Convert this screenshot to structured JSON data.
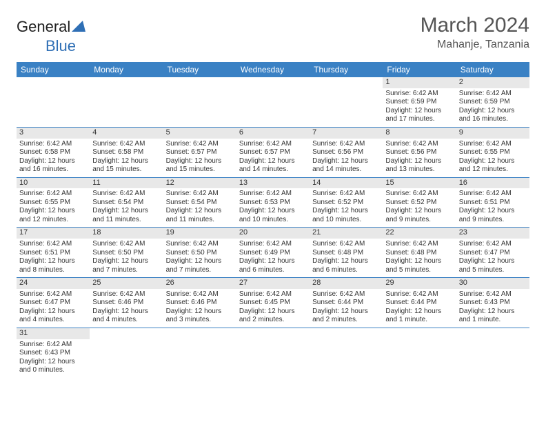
{
  "logo": {
    "text1": "General",
    "text2": "Blue",
    "shape_color": "#2f6fb5"
  },
  "header": {
    "month_title": "March 2024",
    "location": "Mahanje, Tanzania"
  },
  "colors": {
    "header_bg": "#3a81c4",
    "header_text": "#ffffff",
    "day_strip_bg": "#e8e8e8",
    "divider": "#3a81c4",
    "body_text": "#333333"
  },
  "weekdays": [
    "Sunday",
    "Monday",
    "Tuesday",
    "Wednesday",
    "Thursday",
    "Friday",
    "Saturday"
  ],
  "cells": [
    {
      "day": "",
      "lines": []
    },
    {
      "day": "",
      "lines": []
    },
    {
      "day": "",
      "lines": []
    },
    {
      "day": "",
      "lines": []
    },
    {
      "day": "",
      "lines": []
    },
    {
      "day": "1",
      "lines": [
        "Sunrise: 6:42 AM",
        "Sunset: 6:59 PM",
        "Daylight: 12 hours",
        "and 17 minutes."
      ]
    },
    {
      "day": "2",
      "lines": [
        "Sunrise: 6:42 AM",
        "Sunset: 6:59 PM",
        "Daylight: 12 hours",
        "and 16 minutes."
      ]
    },
    {
      "day": "3",
      "lines": [
        "Sunrise: 6:42 AM",
        "Sunset: 6:58 PM",
        "Daylight: 12 hours",
        "and 16 minutes."
      ]
    },
    {
      "day": "4",
      "lines": [
        "Sunrise: 6:42 AM",
        "Sunset: 6:58 PM",
        "Daylight: 12 hours",
        "and 15 minutes."
      ]
    },
    {
      "day": "5",
      "lines": [
        "Sunrise: 6:42 AM",
        "Sunset: 6:57 PM",
        "Daylight: 12 hours",
        "and 15 minutes."
      ]
    },
    {
      "day": "6",
      "lines": [
        "Sunrise: 6:42 AM",
        "Sunset: 6:57 PM",
        "Daylight: 12 hours",
        "and 14 minutes."
      ]
    },
    {
      "day": "7",
      "lines": [
        "Sunrise: 6:42 AM",
        "Sunset: 6:56 PM",
        "Daylight: 12 hours",
        "and 14 minutes."
      ]
    },
    {
      "day": "8",
      "lines": [
        "Sunrise: 6:42 AM",
        "Sunset: 6:56 PM",
        "Daylight: 12 hours",
        "and 13 minutes."
      ]
    },
    {
      "day": "9",
      "lines": [
        "Sunrise: 6:42 AM",
        "Sunset: 6:55 PM",
        "Daylight: 12 hours",
        "and 12 minutes."
      ]
    },
    {
      "day": "10",
      "lines": [
        "Sunrise: 6:42 AM",
        "Sunset: 6:55 PM",
        "Daylight: 12 hours",
        "and 12 minutes."
      ]
    },
    {
      "day": "11",
      "lines": [
        "Sunrise: 6:42 AM",
        "Sunset: 6:54 PM",
        "Daylight: 12 hours",
        "and 11 minutes."
      ]
    },
    {
      "day": "12",
      "lines": [
        "Sunrise: 6:42 AM",
        "Sunset: 6:54 PM",
        "Daylight: 12 hours",
        "and 11 minutes."
      ]
    },
    {
      "day": "13",
      "lines": [
        "Sunrise: 6:42 AM",
        "Sunset: 6:53 PM",
        "Daylight: 12 hours",
        "and 10 minutes."
      ]
    },
    {
      "day": "14",
      "lines": [
        "Sunrise: 6:42 AM",
        "Sunset: 6:52 PM",
        "Daylight: 12 hours",
        "and 10 minutes."
      ]
    },
    {
      "day": "15",
      "lines": [
        "Sunrise: 6:42 AM",
        "Sunset: 6:52 PM",
        "Daylight: 12 hours",
        "and 9 minutes."
      ]
    },
    {
      "day": "16",
      "lines": [
        "Sunrise: 6:42 AM",
        "Sunset: 6:51 PM",
        "Daylight: 12 hours",
        "and 9 minutes."
      ]
    },
    {
      "day": "17",
      "lines": [
        "Sunrise: 6:42 AM",
        "Sunset: 6:51 PM",
        "Daylight: 12 hours",
        "and 8 minutes."
      ]
    },
    {
      "day": "18",
      "lines": [
        "Sunrise: 6:42 AM",
        "Sunset: 6:50 PM",
        "Daylight: 12 hours",
        "and 7 minutes."
      ]
    },
    {
      "day": "19",
      "lines": [
        "Sunrise: 6:42 AM",
        "Sunset: 6:50 PM",
        "Daylight: 12 hours",
        "and 7 minutes."
      ]
    },
    {
      "day": "20",
      "lines": [
        "Sunrise: 6:42 AM",
        "Sunset: 6:49 PM",
        "Daylight: 12 hours",
        "and 6 minutes."
      ]
    },
    {
      "day": "21",
      "lines": [
        "Sunrise: 6:42 AM",
        "Sunset: 6:48 PM",
        "Daylight: 12 hours",
        "and 6 minutes."
      ]
    },
    {
      "day": "22",
      "lines": [
        "Sunrise: 6:42 AM",
        "Sunset: 6:48 PM",
        "Daylight: 12 hours",
        "and 5 minutes."
      ]
    },
    {
      "day": "23",
      "lines": [
        "Sunrise: 6:42 AM",
        "Sunset: 6:47 PM",
        "Daylight: 12 hours",
        "and 5 minutes."
      ]
    },
    {
      "day": "24",
      "lines": [
        "Sunrise: 6:42 AM",
        "Sunset: 6:47 PM",
        "Daylight: 12 hours",
        "and 4 minutes."
      ]
    },
    {
      "day": "25",
      "lines": [
        "Sunrise: 6:42 AM",
        "Sunset: 6:46 PM",
        "Daylight: 12 hours",
        "and 4 minutes."
      ]
    },
    {
      "day": "26",
      "lines": [
        "Sunrise: 6:42 AM",
        "Sunset: 6:46 PM",
        "Daylight: 12 hours",
        "and 3 minutes."
      ]
    },
    {
      "day": "27",
      "lines": [
        "Sunrise: 6:42 AM",
        "Sunset: 6:45 PM",
        "Daylight: 12 hours",
        "and 2 minutes."
      ]
    },
    {
      "day": "28",
      "lines": [
        "Sunrise: 6:42 AM",
        "Sunset: 6:44 PM",
        "Daylight: 12 hours",
        "and 2 minutes."
      ]
    },
    {
      "day": "29",
      "lines": [
        "Sunrise: 6:42 AM",
        "Sunset: 6:44 PM",
        "Daylight: 12 hours",
        "and 1 minute."
      ]
    },
    {
      "day": "30",
      "lines": [
        "Sunrise: 6:42 AM",
        "Sunset: 6:43 PM",
        "Daylight: 12 hours",
        "and 1 minute."
      ]
    },
    {
      "day": "31",
      "lines": [
        "Sunrise: 6:42 AM",
        "Sunset: 6:43 PM",
        "Daylight: 12 hours",
        "and 0 minutes."
      ]
    },
    {
      "day": "",
      "lines": []
    },
    {
      "day": "",
      "lines": []
    },
    {
      "day": "",
      "lines": []
    },
    {
      "day": "",
      "lines": []
    },
    {
      "day": "",
      "lines": []
    },
    {
      "day": "",
      "lines": []
    }
  ]
}
